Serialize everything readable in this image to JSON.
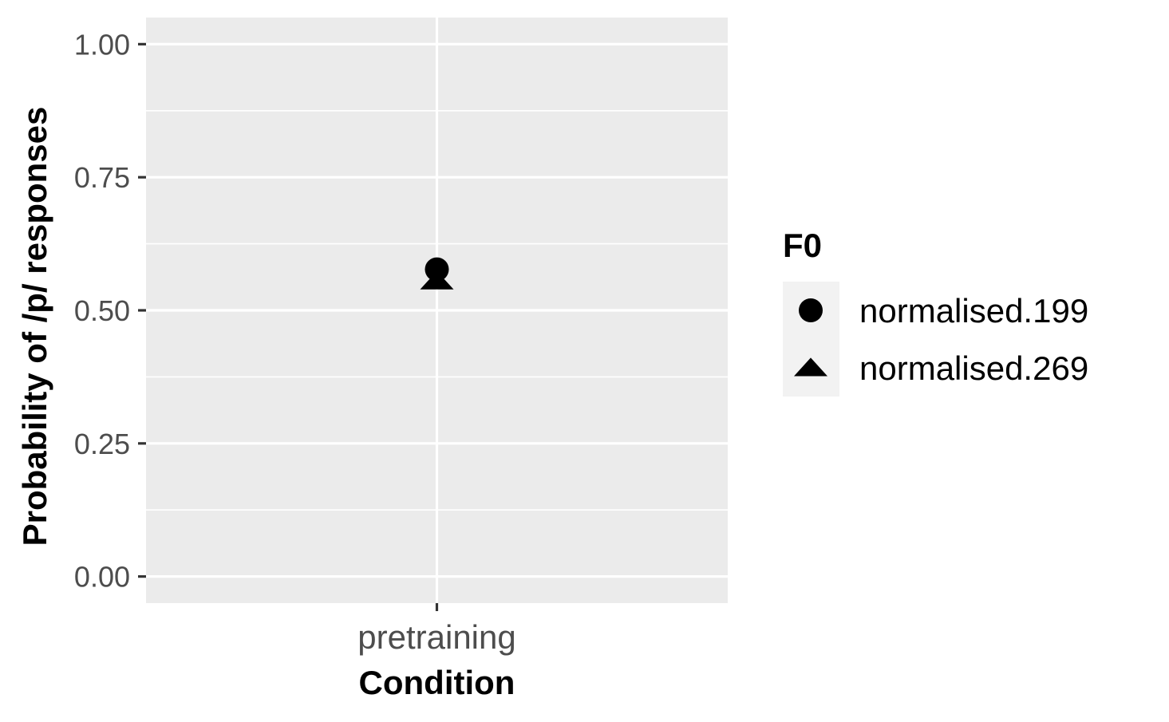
{
  "chart_data": {
    "type": "scatter",
    "xlabel": "Condition",
    "ylabel": "Probability of /p/ responses",
    "categories": [
      "pretraining"
    ],
    "ylim": [
      -0.05,
      1.05
    ],
    "yticks": [
      0.0,
      0.25,
      0.5,
      0.75,
      1.0
    ],
    "ytick_labels": [
      "0.00",
      "0.25",
      "0.50",
      "0.75",
      "1.00"
    ],
    "grid": true,
    "panel_background": "#ebebeb",
    "grid_color": "#ffffff",
    "point_color": "#000000",
    "legend": {
      "title": "F0",
      "position": "right",
      "entries": [
        {
          "label": "normalised.199",
          "shape": "circle"
        },
        {
          "label": "normalised.269",
          "shape": "triangle"
        }
      ]
    },
    "series": [
      {
        "name": "normalised.199",
        "shape": "circle",
        "values": [
          0.577
        ]
      },
      {
        "name": "normalised.269",
        "shape": "triangle",
        "values": [
          0.555
        ]
      }
    ]
  }
}
